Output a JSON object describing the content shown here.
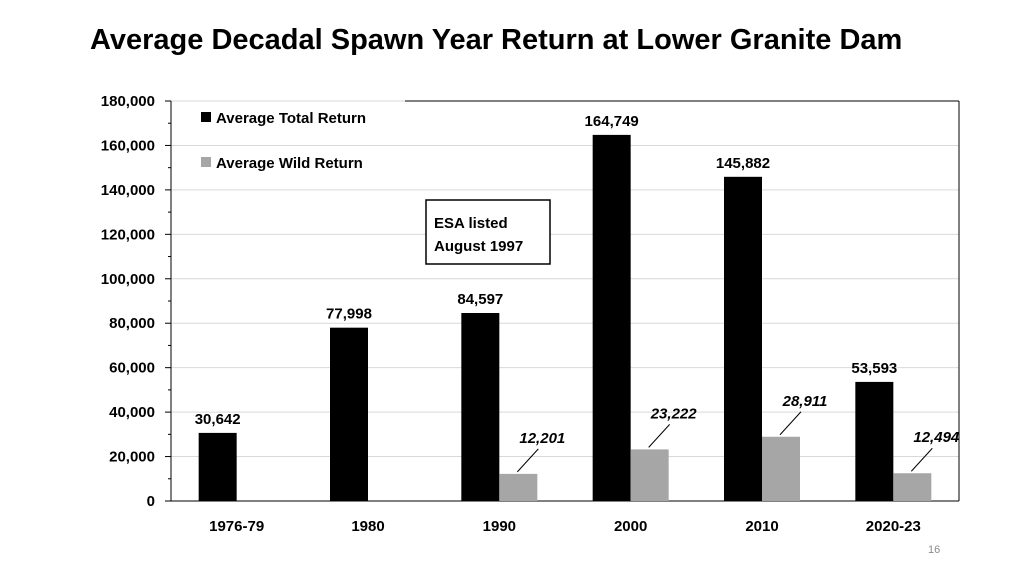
{
  "slide": {
    "title": "Average Decadal Spawn Year Return at Lower Granite Dam",
    "page_number": "16"
  },
  "colors": {
    "total": "#000000",
    "wild": "#a6a6a6",
    "grid": "#d9d9d9"
  },
  "chart_data": {
    "type": "bar",
    "title": "",
    "xlabel": "",
    "ylabel": "",
    "categories": [
      "1976-79",
      "1980",
      "1990",
      "2000",
      "2010",
      "2020-23"
    ],
    "series": [
      {
        "name": "Average Total Return",
        "values": [
          30642,
          77998,
          84597,
          164749,
          145882,
          53593
        ],
        "labels": [
          "30,642",
          "77,998",
          "84,597",
          "164,749",
          "145,882",
          "53,593"
        ]
      },
      {
        "name": "Average Wild Return",
        "values": [
          null,
          null,
          12201,
          23222,
          28911,
          12494
        ],
        "labels": [
          "",
          "",
          "12,201",
          "23,222",
          "28,911",
          "12,494"
        ]
      }
    ],
    "ylim": [
      0,
      180000
    ],
    "yticks": [
      0,
      20000,
      40000,
      60000,
      80000,
      100000,
      120000,
      140000,
      160000,
      180000
    ],
    "ytick_labels": [
      "0",
      "20,000",
      "40,000",
      "60,000",
      "80,000",
      "100,000",
      "120,000",
      "140,000",
      "160,000",
      "180,000"
    ],
    "grid": true,
    "legend_position": "top-left",
    "annotation": {
      "lines": [
        "ESA listed",
        "August 1997"
      ]
    }
  }
}
